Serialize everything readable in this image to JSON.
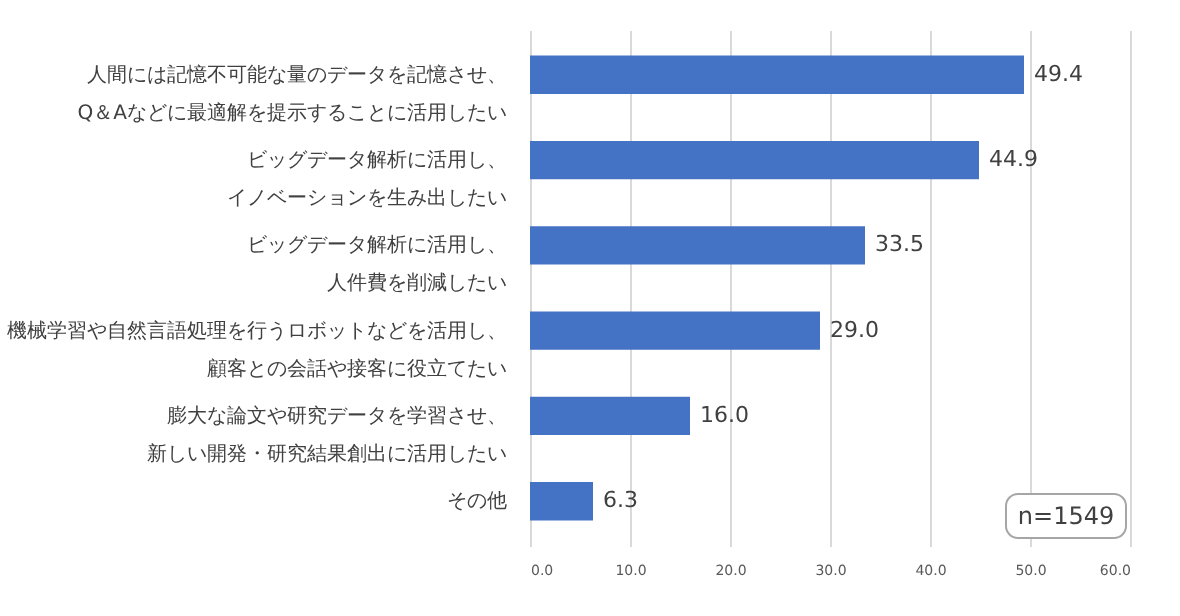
{
  "chart_data": {
    "type": "bar",
    "orientation": "horizontal",
    "categories": [
      "人間には記憶不可能な量のデータを記憶させ、Q＆Aなどに最適解を提示することに活用したい",
      "ビッグデータ解析に活用し、イノベーションを生み出したい",
      "ビッグデータ解析に活用し、人件費を削減したい",
      "機械学習や自然言語処理を行うロボットなどを活用し、顧客との会話や接客に役立てたい",
      "膨大な論文や研究データを学習させ、新しい開発・研究結果創出に活用したい",
      "その他"
    ],
    "values": [
      49.4,
      44.9,
      33.5,
      29.0,
      16.0,
      6.3
    ],
    "value_labels": [
      "49.4",
      "44.9",
      "33.5",
      "29.0",
      "16.0",
      "6.3"
    ],
    "color": "#4472c4",
    "xlim": [
      0,
      60
    ],
    "xticks": [
      {
        "value": 0,
        "label": "0.0"
      },
      {
        "value": 10,
        "label": "10.0"
      },
      {
        "value": 20,
        "label": "20.0"
      },
      {
        "value": 30,
        "label": "30.0"
      },
      {
        "value": 40,
        "label": "40.0"
      },
      {
        "value": 50,
        "label": "50.0"
      },
      {
        "value": 60,
        "label": "60.0"
      }
    ],
    "grid": "x",
    "annotations": [
      "n=1549"
    ]
  }
}
